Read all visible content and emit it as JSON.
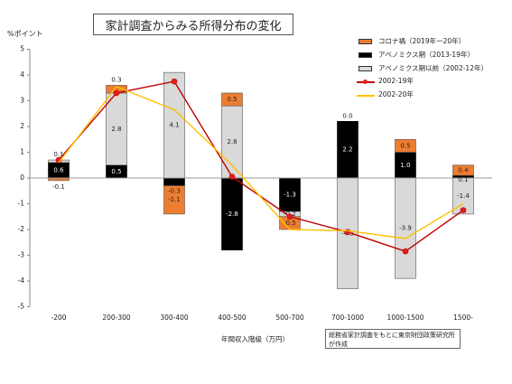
{
  "title": "家計調査からみる所得分布の変化",
  "unit_label": "%ポイント",
  "xlabel": "年間収入階級（万円）",
  "source": "総務省家計調査をもとに東京財団政策研究所が作成",
  "colors": {
    "orange": "#ED7D31",
    "black": "#000000",
    "gray": "#D9D9D9",
    "red": "#C00000",
    "yellow": "#FFC000"
  },
  "chart_data": {
    "type": "bar",
    "stacked": true,
    "categories": [
      "-200",
      "200-300",
      "300-400",
      "400-500",
      "500-700",
      "700-1000",
      "1000-1500",
      "1500-"
    ],
    "ylim": [
      -5,
      5
    ],
    "yticks": [
      "5",
      "4",
      "3",
      "2",
      "1",
      "0",
      "-1",
      "-2",
      "-3",
      "-4",
      "-5"
    ],
    "grid": false,
    "legend_position": "top-right",
    "bar_series": [
      {
        "name": "コロナ禍（2019年ー20年）",
        "color": "#ED7D31",
        "values": [
          -0.1,
          0.3,
          -1.1,
          0.5,
          -0.5,
          0.0,
          0.5,
          0.4
        ]
      },
      {
        "name": "アベノミクス期（2013-19年）",
        "color": "#000000",
        "values": [
          0.6,
          0.5,
          -0.3,
          -2.8,
          -1.3,
          2.2,
          1.0,
          0.1
        ]
      },
      {
        "name": "アベノミクス期以前（2002-12年）",
        "color": "#D9D9D9",
        "values": [
          0.1,
          2.8,
          4.1,
          2.8,
          -0.2,
          -4.3,
          -3.9,
          -1.4
        ]
      }
    ],
    "data_labels": {
      "orange": [
        "-0.1",
        "0.3",
        "-1.1",
        "0.5",
        "-0.5",
        "0.0",
        "0.5",
        "0.4"
      ],
      "black": [
        "0.6",
        "0.5",
        "-0.3",
        "-2.8",
        "-1.3",
        "2.2",
        "1.0",
        "0.1"
      ],
      "gray": [
        "0.1",
        "2.8",
        "4.1",
        "2.8",
        "-0.2",
        "-4.3",
        "-3.9",
        "-1.4"
      ]
    },
    "line_series": [
      {
        "name": "2002-19年",
        "color": "#C00000",
        "marker": "circle",
        "values": [
          0.7,
          3.3,
          3.75,
          0.05,
          -1.5,
          -2.1,
          -2.85,
          -1.25
        ]
      },
      {
        "name": "2002-20年",
        "color": "#FFC000",
        "marker": "none",
        "values": [
          0.6,
          3.55,
          2.65,
          0.5,
          -2.0,
          -2.05,
          -2.35,
          -1.0
        ]
      }
    ]
  }
}
